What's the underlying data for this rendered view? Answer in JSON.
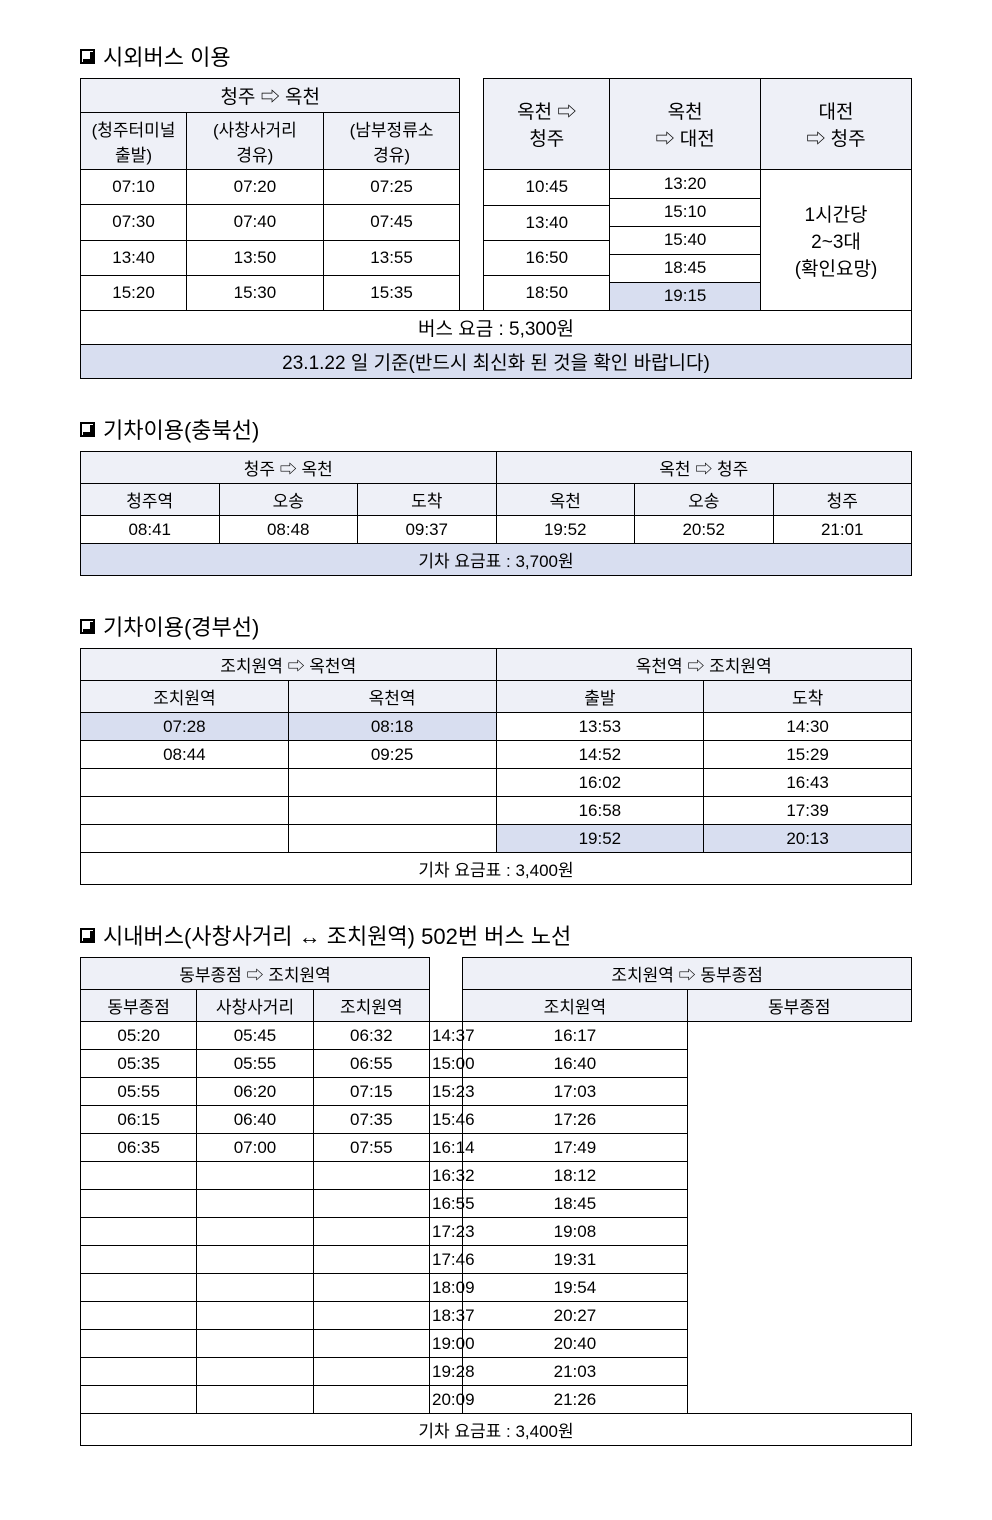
{
  "sec1": {
    "title": "시외버스 이용",
    "left": {
      "top": "청주 ⇨ 옥천",
      "h1": "(청주터미널\n출발)",
      "h2": "(사창사거리\n경유)",
      "h3": "(남부정류소\n경유)",
      "rows": [
        [
          "07:10",
          "07:20",
          "07:25"
        ],
        [
          "07:30",
          "07:40",
          "07:45"
        ],
        [
          "13:40",
          "13:50",
          "13:55"
        ],
        [
          "15:20",
          "15:30",
          "15:35"
        ]
      ]
    },
    "right": {
      "h1a": "옥천 ⇨",
      "h1b": "청주",
      "h2a": "옥천",
      "h2b": "⇨ 대전",
      "h3a": "대전",
      "h3b": "⇨ 청주",
      "col1": [
        "10:45",
        "13:40",
        "16:50",
        "18:50"
      ],
      "col2": [
        "13:20",
        "15:10",
        "15:40",
        "18:45",
        "19:15"
      ],
      "col3a": "1시간당",
      "col3b": "2~3대",
      "col3c": "(확인요망)"
    },
    "fare": "버스 요금 : 5,300원",
    "note": "23.1.22 일 기준(반드시 최신화 된 것을 확인 바랍니다)"
  },
  "sec2": {
    "title": "기차이용(충북선)",
    "leftTop": "청주 ⇨ 옥천",
    "rightTop": "옥천 ⇨ 청주",
    "lh": [
      "청주역",
      "오송",
      "도착"
    ],
    "rh": [
      "옥천",
      "오송",
      "청주"
    ],
    "lrow": [
      "08:41",
      "08:48",
      "09:37"
    ],
    "rrow": [
      "19:52",
      "20:52",
      "21:01"
    ],
    "fare": "기차 요금표 : 3,700원"
  },
  "sec3": {
    "title": "기차이용(경부선)",
    "leftTop": "조치원역 ⇨ 옥천역",
    "rightTop": "옥천역 ⇨ 조치원역",
    "lh": [
      "조치원역",
      "옥천역"
    ],
    "rh": [
      "출발",
      "도착"
    ],
    "lrows": [
      [
        "07:28",
        "08:18"
      ],
      [
        "08:44",
        "09:25"
      ],
      [
        "",
        ""
      ],
      [
        "",
        ""
      ],
      [
        "",
        ""
      ]
    ],
    "rrows": [
      [
        "13:53",
        "14:30"
      ],
      [
        "14:52",
        "15:29"
      ],
      [
        "16:02",
        "16:43"
      ],
      [
        "16:58",
        "17:39"
      ],
      [
        "19:52",
        "20:13"
      ]
    ],
    "fare": "기차 요금표 : 3,400원"
  },
  "sec4": {
    "title": "시내버스(사창사거리 ↔ 조치원역) 502번 버스 노선",
    "leftTop": "동부종점 ⇨ 조치원역",
    "rightTop": "조치원역 ⇨ 동부종점",
    "lh": [
      "동부종점",
      "사창사거리",
      "조치원역"
    ],
    "rh": [
      "조치원역",
      "동부종점"
    ],
    "lrows": [
      [
        "05:20",
        "05:45",
        "06:32"
      ],
      [
        "05:35",
        "05:55",
        "06:55"
      ],
      [
        "05:55",
        "06:20",
        "07:15"
      ],
      [
        "06:15",
        "06:40",
        "07:35"
      ],
      [
        "06:35",
        "07:00",
        "07:55"
      ],
      [
        "",
        "",
        ""
      ],
      [
        "",
        "",
        ""
      ],
      [
        "",
        "",
        ""
      ],
      [
        "",
        "",
        ""
      ],
      [
        "",
        "",
        ""
      ],
      [
        "",
        "",
        ""
      ],
      [
        "",
        "",
        ""
      ],
      [
        "",
        "",
        ""
      ]
    ],
    "rrows": [
      [
        "14:37",
        "16:17"
      ],
      [
        "15:00",
        "16:40"
      ],
      [
        "15:23",
        "17:03"
      ],
      [
        "15:46",
        "17:26"
      ],
      [
        "16:14",
        "17:49"
      ],
      [
        "16:32",
        "18:12"
      ],
      [
        "16:55",
        "18:45"
      ],
      [
        "17:23",
        "19:08"
      ],
      [
        "17:46",
        "19:31"
      ],
      [
        "18:09",
        "19:54"
      ],
      [
        "18:37",
        "20:27"
      ],
      [
        "19:00",
        "20:40"
      ],
      [
        "19:28",
        "21:03"
      ],
      [
        "20:09",
        "21:26"
      ]
    ],
    "fare": "기차 요금표 : 3,400원"
  },
  "colors": {
    "hdr": "#eef0f7",
    "shade": "#d8def0"
  }
}
